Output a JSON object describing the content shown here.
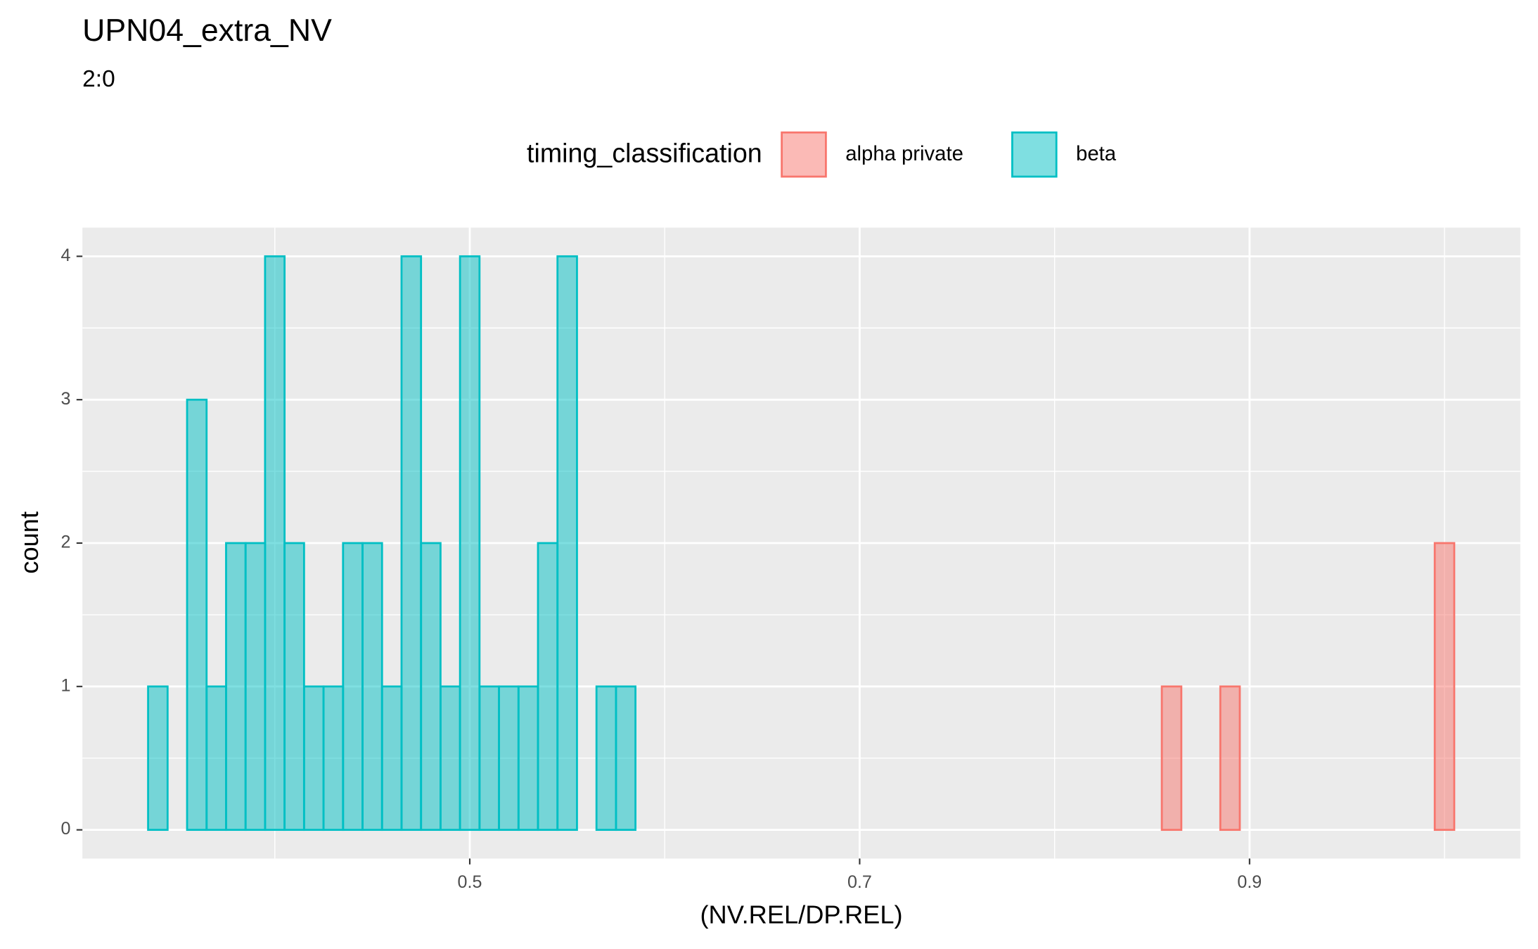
{
  "chart_data": {
    "type": "histogram",
    "title": "UPN04_extra_NV",
    "subtitle": "2:0",
    "x_label": "(NV.REL/DP.REL)",
    "y_label": "count",
    "legend_title": "timing_classification",
    "legend_position": "top",
    "bins": [
      0.335,
      0.345,
      0.355,
      0.365,
      0.375,
      0.385,
      0.395,
      0.405,
      0.415,
      0.425,
      0.435,
      0.445,
      0.455,
      0.465,
      0.475,
      0.485,
      0.495,
      0.505,
      0.515,
      0.525,
      0.535,
      0.545,
      0.555,
      0.565,
      0.575,
      0.585,
      0.595,
      0.605,
      0.615,
      0.625,
      0.635,
      0.645,
      0.655,
      0.665,
      0.675,
      0.685,
      0.695,
      0.705,
      0.715,
      0.725,
      0.735,
      0.745,
      0.755,
      0.765,
      0.775,
      0.785,
      0.795,
      0.805,
      0.815,
      0.825,
      0.835,
      0.845,
      0.855,
      0.865,
      0.875,
      0.885,
      0.895,
      0.905,
      0.915,
      0.925,
      0.935,
      0.945,
      0.955,
      0.965,
      0.975,
      0.985,
      0.995,
      1.005
    ],
    "series": [
      {
        "name": "alpha private",
        "color": "#F8766D",
        "values": [
          0,
          0,
          0,
          0,
          0,
          0,
          0,
          0,
          0,
          0,
          0,
          0,
          0,
          0,
          0,
          0,
          0,
          0,
          0,
          0,
          0,
          0,
          0,
          0,
          0,
          0,
          0,
          0,
          0,
          0,
          0,
          0,
          0,
          0,
          0,
          0,
          0,
          0,
          0,
          0,
          0,
          0,
          0,
          0,
          0,
          0,
          0,
          0,
          0,
          0,
          0,
          0,
          1,
          0,
          0,
          1,
          0,
          0,
          0,
          0,
          0,
          0,
          0,
          0,
          0,
          0,
          2
        ]
      },
      {
        "name": "beta",
        "color": "#00BFC4",
        "values": [
          1,
          0,
          3,
          1,
          2,
          2,
          4,
          2,
          1,
          1,
          2,
          2,
          1,
          4,
          2,
          1,
          4,
          1,
          1,
          1,
          2,
          4,
          0,
          1,
          1,
          0,
          0,
          0,
          0,
          0,
          0,
          0,
          0,
          0,
          0,
          0,
          0,
          0,
          0,
          0,
          0,
          0,
          0,
          0,
          0,
          0,
          0,
          0,
          0,
          0,
          0,
          0,
          0,
          0,
          0,
          0,
          0,
          0,
          0,
          0,
          0,
          0,
          0,
          0,
          0,
          0,
          0
        ]
      }
    ],
    "xlim": [
      0.3013,
      1.0389
    ],
    "ylim": [
      -0.2,
      4.2
    ],
    "xticks": [
      0.5,
      0.7,
      0.9
    ],
    "yticks": [
      0,
      1,
      2,
      3,
      4
    ],
    "x_minor_ticks": [
      0.4,
      0.6,
      0.8,
      1.0
    ],
    "y_minor_ticks": [
      0.5,
      1.5,
      2.5,
      3.5
    ],
    "grid": true
  }
}
